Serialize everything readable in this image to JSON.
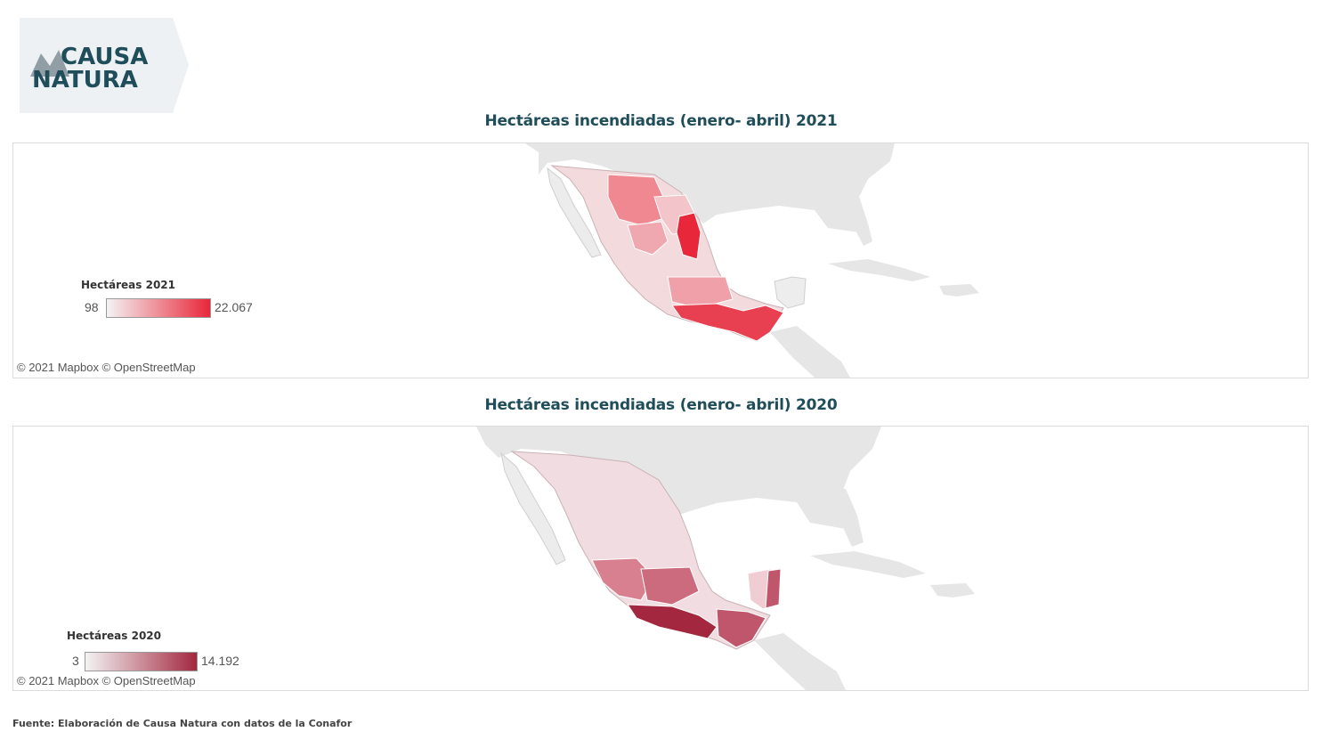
{
  "logo": {
    "line1": "CAUSA",
    "line2": "NATURA",
    "color": "#1f4d5a"
  },
  "maps": [
    {
      "title": "Hectáreas incendiadas (enero- abril) 2021",
      "legend_title": "Hectáreas 2021",
      "legend_min": "98",
      "legend_max": "22.067",
      "color_low": "#f3f3f3",
      "color_high": "#e8273a",
      "attribution": "© 2021 Mapbox  © OpenStreetMap"
    },
    {
      "title": "Hectáreas incendiadas (enero- abril) 2020",
      "legend_title": "Hectáreas 2020",
      "legend_min": "3",
      "legend_max": "14.192",
      "color_low": "#f3f3f3",
      "color_high": "#a3283f",
      "attribution": "© 2021 Mapbox  © OpenStreetMap"
    }
  ],
  "source": "Fuente: Elaboración de Causa Natura con datos de la Conafor"
}
